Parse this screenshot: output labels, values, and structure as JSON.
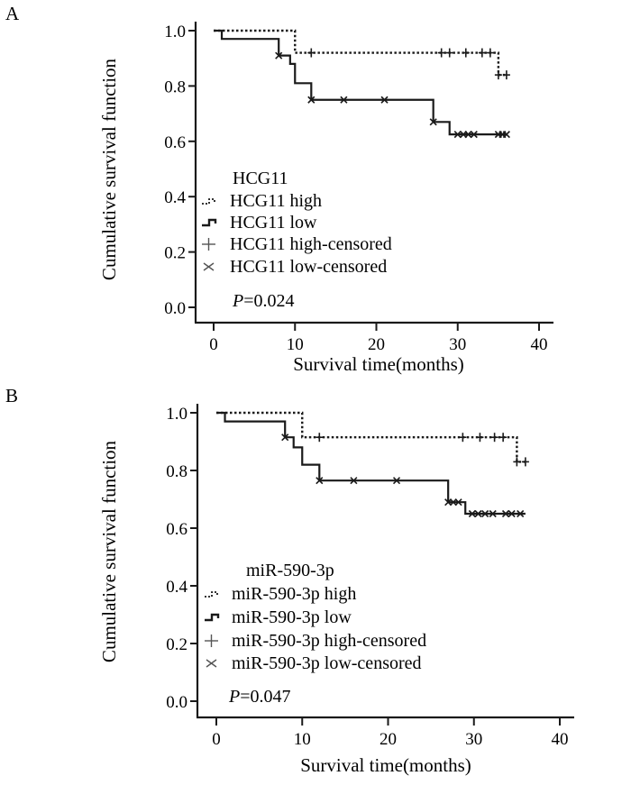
{
  "figure": {
    "panels": [
      "A",
      "B"
    ]
  },
  "chart_data": [
    {
      "panel": "A",
      "type": "line",
      "subtype": "kaplan-meier",
      "title": "",
      "xlabel": "Survival time(months)",
      "ylabel": "Cumulative survival function",
      "xlim": [
        0,
        40
      ],
      "ylim": [
        0.0,
        1.0
      ],
      "xticks": [
        0,
        10,
        20,
        30,
        40
      ],
      "yticks": [
        0.0,
        0.2,
        0.4,
        0.6,
        0.8,
        1.0
      ],
      "ytick_labels": [
        "0.0",
        "0.2",
        "0.4",
        "0.6",
        "0.8",
        "1.0"
      ],
      "grid": false,
      "legend": {
        "placement": "bottom-left",
        "title": "HCG11",
        "entries": [
          "HCG11 high",
          "HCG11 low",
          "HCG11 high-censored",
          "HCG11 low-censored"
        ]
      },
      "annotation": {
        "p_label": "P",
        "p_value": "=0.024"
      },
      "series": [
        {
          "name": "HCG11 high",
          "style": "dotted",
          "steps": [
            [
              0,
              1.0
            ],
            [
              10,
              0.92
            ],
            [
              35,
              0.84
            ],
            [
              36,
              0.84
            ]
          ],
          "censored": [
            [
              12,
              0.92
            ],
            [
              28,
              0.92
            ],
            [
              29,
              0.92
            ],
            [
              31,
              0.92
            ],
            [
              33,
              0.92
            ],
            [
              34,
              0.92
            ],
            [
              35,
              0.84
            ],
            [
              36,
              0.84
            ]
          ]
        },
        {
          "name": "HCG11 low",
          "style": "solid",
          "steps": [
            [
              0,
              1.0
            ],
            [
              1,
              0.97
            ],
            [
              8,
              0.91
            ],
            [
              9.4,
              0.88
            ],
            [
              10,
              0.81
            ],
            [
              12,
              0.75
            ],
            [
              27,
              0.67
            ],
            [
              29,
              0.625
            ],
            [
              36,
              0.625
            ]
          ],
          "censored": [
            [
              8,
              0.91
            ],
            [
              12,
              0.75
            ],
            [
              16,
              0.75
            ],
            [
              21,
              0.75
            ],
            [
              27,
              0.67
            ],
            [
              30,
              0.625
            ],
            [
              30.7,
              0.625
            ],
            [
              31.3,
              0.625
            ],
            [
              32,
              0.625
            ],
            [
              35,
              0.625
            ],
            [
              35.5,
              0.625
            ],
            [
              36,
              0.625
            ]
          ]
        }
      ]
    },
    {
      "panel": "B",
      "type": "line",
      "subtype": "kaplan-meier",
      "title": "",
      "xlabel": "Survival time(months)",
      "ylabel": "Cumulative survival function",
      "xlim": [
        0,
        40
      ],
      "ylim": [
        0.0,
        1.0
      ],
      "xticks": [
        0,
        10,
        20,
        30,
        40
      ],
      "yticks": [
        0.0,
        0.2,
        0.4,
        0.6,
        0.8,
        1.0
      ],
      "ytick_labels": [
        "0.0",
        "0.2",
        "0.4",
        "0.6",
        "0.8",
        "1.0"
      ],
      "grid": false,
      "legend": {
        "placement": "bottom-left",
        "title": "miR-590-3p",
        "entries": [
          "miR-590-3p high",
          "miR-590-3p low",
          "miR-590-3p high-censored",
          "miR-590-3p low-censored"
        ]
      },
      "annotation": {
        "p_label": "P",
        "p_value": "=0.047"
      },
      "series": [
        {
          "name": "miR-590-3p high",
          "style": "dotted",
          "steps": [
            [
              0,
              1.0
            ],
            [
              10,
              0.915
            ],
            [
              35,
              0.83
            ],
            [
              36,
              0.83
            ]
          ],
          "censored": [
            [
              12,
              0.915
            ],
            [
              28.7,
              0.915
            ],
            [
              30.7,
              0.915
            ],
            [
              32.4,
              0.915
            ],
            [
              33.4,
              0.915
            ],
            [
              35,
              0.83
            ],
            [
              36,
              0.83
            ]
          ]
        },
        {
          "name": "miR-590-3p low",
          "style": "solid",
          "steps": [
            [
              0,
              1.0
            ],
            [
              1,
              0.97
            ],
            [
              8,
              0.915
            ],
            [
              9,
              0.88
            ],
            [
              10,
              0.82
            ],
            [
              12,
              0.765
            ],
            [
              27,
              0.69
            ],
            [
              29,
              0.65
            ],
            [
              36,
              0.65
            ]
          ],
          "censored": [
            [
              8,
              0.915
            ],
            [
              12,
              0.765
            ],
            [
              16,
              0.765
            ],
            [
              21,
              0.765
            ],
            [
              27,
              0.69
            ],
            [
              27.6,
              0.69
            ],
            [
              28.2,
              0.69
            ],
            [
              29.8,
              0.65
            ],
            [
              30.5,
              0.65
            ],
            [
              31.3,
              0.65
            ],
            [
              32.2,
              0.65
            ],
            [
              33.7,
              0.65
            ],
            [
              34.4,
              0.65
            ],
            [
              35.4,
              0.65
            ]
          ]
        }
      ]
    }
  ]
}
